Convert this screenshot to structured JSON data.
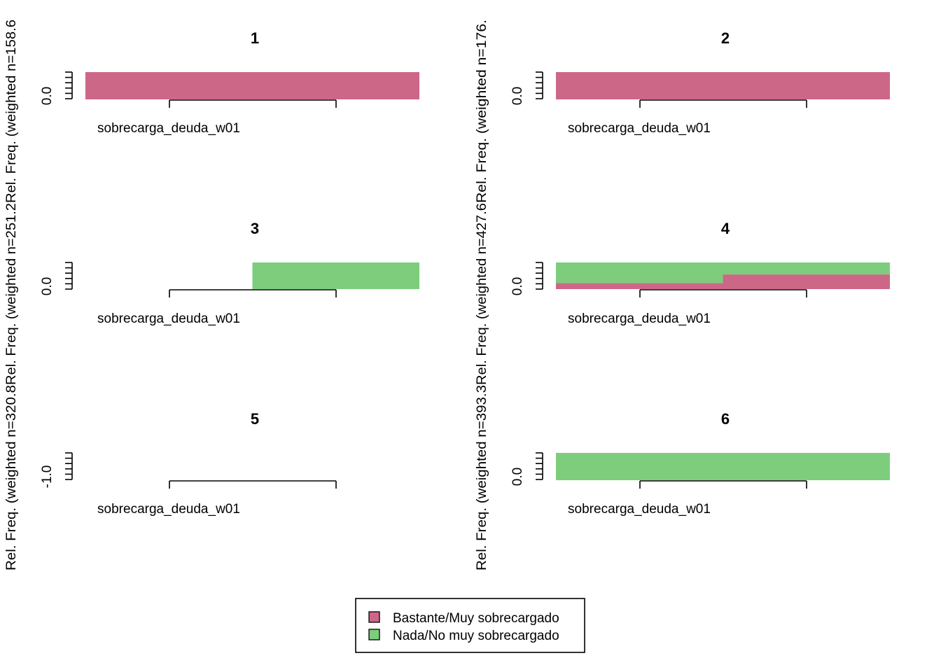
{
  "chart_data": [
    {
      "type": "bar",
      "title": "1",
      "xlabel": "sobrecarga_deuda_w01",
      "ylabel": "Rel. Freq. (weighted n=158.6",
      "ytick": "0.0",
      "segments": [
        {
          "series": "Bastante/Muy sobrecargado",
          "x0": 0,
          "x1": 1,
          "y0": 0,
          "y1": 1
        }
      ]
    },
    {
      "type": "bar",
      "title": "2",
      "xlabel": "sobrecarga_deuda_w01",
      "ylabel": "Rel. Freq. (weighted n=176.",
      "ytick": "0.0",
      "segments": [
        {
          "series": "Bastante/Muy sobrecargado",
          "x0": 0,
          "x1": 1,
          "y0": 0,
          "y1": 1
        }
      ]
    },
    {
      "type": "bar",
      "title": "3",
      "xlabel": "sobrecarga_deuda_w01",
      "ylabel": "Rel. Freq. (weighted n=251.2",
      "ytick": "0.0",
      "segments": [
        {
          "series": "Nada/No muy sobrecargado",
          "x0": 0.5,
          "x1": 1,
          "y0": 0,
          "y1": 1
        }
      ]
    },
    {
      "type": "bar",
      "title": "4",
      "xlabel": "sobrecarga_deuda_w01",
      "ylabel": "Rel. Freq. (weighted n=427.6",
      "ytick": "0.0",
      "segments": [
        {
          "series": "Bastante/Muy sobrecargado",
          "x0": 0,
          "x1": 0.5,
          "y0": 0,
          "y1": 0.23
        },
        {
          "series": "Nada/No muy sobrecargado",
          "x0": 0,
          "x1": 0.5,
          "y0": 0.23,
          "y1": 1
        },
        {
          "series": "Bastante/Muy sobrecargado",
          "x0": 0.5,
          "x1": 1,
          "y0": 0,
          "y1": 0.55
        },
        {
          "series": "Nada/No muy sobrecargado",
          "x0": 0.5,
          "x1": 1,
          "y0": 0.55,
          "y1": 1
        }
      ]
    },
    {
      "type": "bar",
      "title": "5",
      "xlabel": "sobrecarga_deuda_w01",
      "ylabel": "Rel. Freq. (weighted n=320.8",
      "ytick": "-1.0",
      "segments": []
    },
    {
      "type": "bar",
      "title": "6",
      "xlabel": "sobrecarga_deuda_w01",
      "ylabel": "Rel. Freq. (weighted n=393.3",
      "ytick": "0.0",
      "segments": [
        {
          "series": "Nada/No muy sobrecargado",
          "x0": 0,
          "x1": 1,
          "y0": 0,
          "y1": 1
        }
      ]
    }
  ],
  "legend": {
    "placement": "bottom-center",
    "items": [
      {
        "label": "Bastante/Muy sobrecargado",
        "color": "#CD6787"
      },
      {
        "label": "Nada/No muy sobrecargado",
        "color": "#7DCD7D"
      }
    ]
  }
}
